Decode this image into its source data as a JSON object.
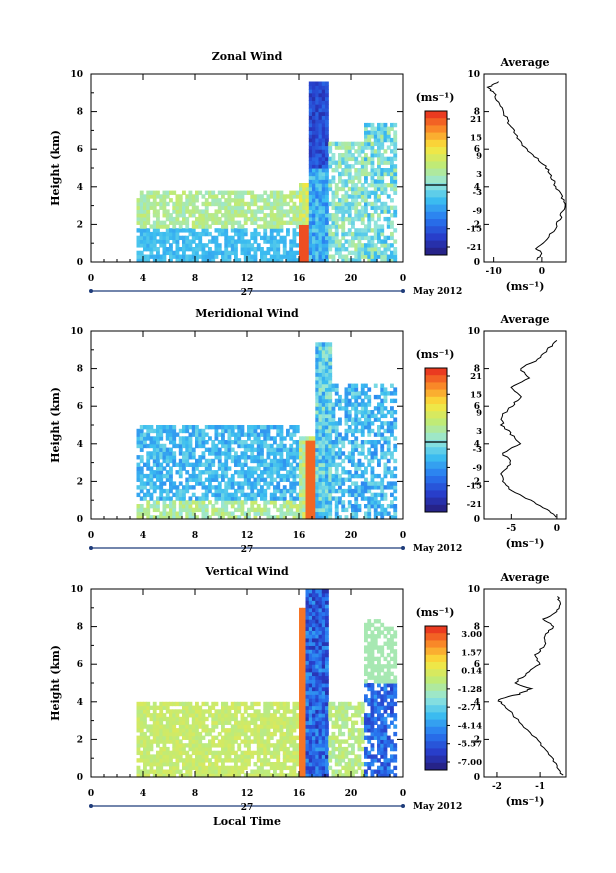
{
  "figure": {
    "date_label": "May 2012",
    "day_label": "27",
    "xlabel": "Local Time",
    "ylabel": "Height (km)",
    "unit_label": "(ms⁻¹)",
    "avg_title": "Average"
  },
  "chart_data": [
    {
      "type": "heatmap",
      "title": "Zonal Wind",
      "xlabel": "",
      "ylabel": "Height (km)",
      "xlim": [
        0,
        24
      ],
      "ylim": [
        0,
        10
      ],
      "x_ticks": [
        "0",
        "4",
        "8",
        "12",
        "16",
        "20",
        "0"
      ],
      "y_ticks": [
        "0",
        "2",
        "4",
        "6",
        "8",
        "10"
      ],
      "colorbar": {
        "label": "(ms⁻¹)",
        "ticks": [
          "21",
          "15",
          "9",
          "3",
          "-3",
          "-9",
          "-15",
          "-21"
        ],
        "zero_contour_at": "0"
      },
      "avg_profile": {
        "title": "Average",
        "xlabel": "(ms⁻¹)",
        "xlim": [
          -12,
          5
        ],
        "x_ticks": [
          "-10",
          "0"
        ],
        "points": [
          [
            -1,
            0.1
          ],
          [
            0,
            0.4
          ],
          [
            -1,
            0.7
          ],
          [
            1,
            1.2
          ],
          [
            3,
            1.9
          ],
          [
            4,
            2.5
          ],
          [
            5,
            3.0
          ],
          [
            4,
            3.5
          ],
          [
            3,
            4.0
          ],
          [
            2,
            4.5
          ],
          [
            1,
            5.0
          ],
          [
            -1,
            5.5
          ],
          [
            -3,
            6.0
          ],
          [
            -5,
            6.5
          ],
          [
            -6,
            7.0
          ],
          [
            -7,
            7.5
          ],
          [
            -8,
            8.0
          ],
          [
            -9,
            8.5
          ],
          [
            -10,
            9.0
          ],
          [
            -11,
            9.3
          ],
          [
            -9,
            9.6
          ]
        ]
      }
    },
    {
      "type": "heatmap",
      "title": "Meridional Wind",
      "xlabel": "",
      "ylabel": "Height (km)",
      "xlim": [
        0,
        24
      ],
      "ylim": [
        0,
        10
      ],
      "x_ticks": [
        "0",
        "4",
        "8",
        "12",
        "16",
        "20",
        "0"
      ],
      "y_ticks": [
        "0",
        "2",
        "4",
        "6",
        "8",
        "10"
      ],
      "colorbar": {
        "label": "(ms⁻¹)",
        "ticks": [
          "21",
          "15",
          "9",
          "3",
          "-3",
          "-9",
          "-15",
          "-21"
        ],
        "zero_contour_at": "0"
      },
      "avg_profile": {
        "title": "Average",
        "xlabel": "(ms⁻¹)",
        "xlim": [
          -8,
          1
        ],
        "x_ticks": [
          "-5",
          "0"
        ],
        "points": [
          [
            0,
            0.1
          ],
          [
            -1,
            0.5
          ],
          [
            -3,
            1.0
          ],
          [
            -5,
            1.5
          ],
          [
            -6,
            2.0
          ],
          [
            -6,
            2.5
          ],
          [
            -5,
            3.0
          ],
          [
            -6,
            3.5
          ],
          [
            -4,
            4.0
          ],
          [
            -5,
            4.5
          ],
          [
            -6,
            5.0
          ],
          [
            -6,
            5.5
          ],
          [
            -5,
            6.0
          ],
          [
            -4,
            6.5
          ],
          [
            -5,
            7.0
          ],
          [
            -3,
            7.5
          ],
          [
            -4,
            8.0
          ],
          [
            -2,
            8.5
          ],
          [
            -1,
            9.0
          ],
          [
            0,
            9.5
          ]
        ]
      }
    },
    {
      "type": "heatmap",
      "title": "Vertical Wind",
      "xlabel": "Local Time",
      "ylabel": "Height (km)",
      "xlim": [
        0,
        24
      ],
      "ylim": [
        0,
        10
      ],
      "x_ticks": [
        "0",
        "4",
        "8",
        "12",
        "16",
        "20",
        "0"
      ],
      "y_ticks": [
        "0",
        "2",
        "4",
        "6",
        "8",
        "10"
      ],
      "colorbar": {
        "label": "(ms⁻¹)",
        "ticks": [
          "3.00",
          "1.57",
          "0.14",
          "-1.28",
          "-2.71",
          "-4.14",
          "-5.57",
          "-7.00"
        ]
      },
      "avg_profile": {
        "title": "Average",
        "xlabel": "(ms⁻¹)",
        "xlim": [
          -2.3,
          -0.4
        ],
        "x_ticks": [
          "-2",
          "-1"
        ],
        "points": [
          [
            -0.5,
            0.1
          ],
          [
            -0.6,
            0.6
          ],
          [
            -0.8,
            1.2
          ],
          [
            -1.0,
            1.8
          ],
          [
            -1.3,
            2.5
          ],
          [
            -1.6,
            3.2
          ],
          [
            -1.8,
            3.8
          ],
          [
            -2.0,
            4.1
          ],
          [
            -1.5,
            4.4
          ],
          [
            -1.2,
            4.7
          ],
          [
            -1.6,
            5.0
          ],
          [
            -1.3,
            5.5
          ],
          [
            -1.0,
            6.0
          ],
          [
            -1.1,
            6.5
          ],
          [
            -0.9,
            7.0
          ],
          [
            -0.9,
            7.5
          ],
          [
            -0.7,
            8.0
          ],
          [
            -0.9,
            8.4
          ],
          [
            -0.6,
            8.8
          ],
          [
            -0.5,
            9.2
          ],
          [
            -0.6,
            9.6
          ]
        ]
      }
    }
  ]
}
